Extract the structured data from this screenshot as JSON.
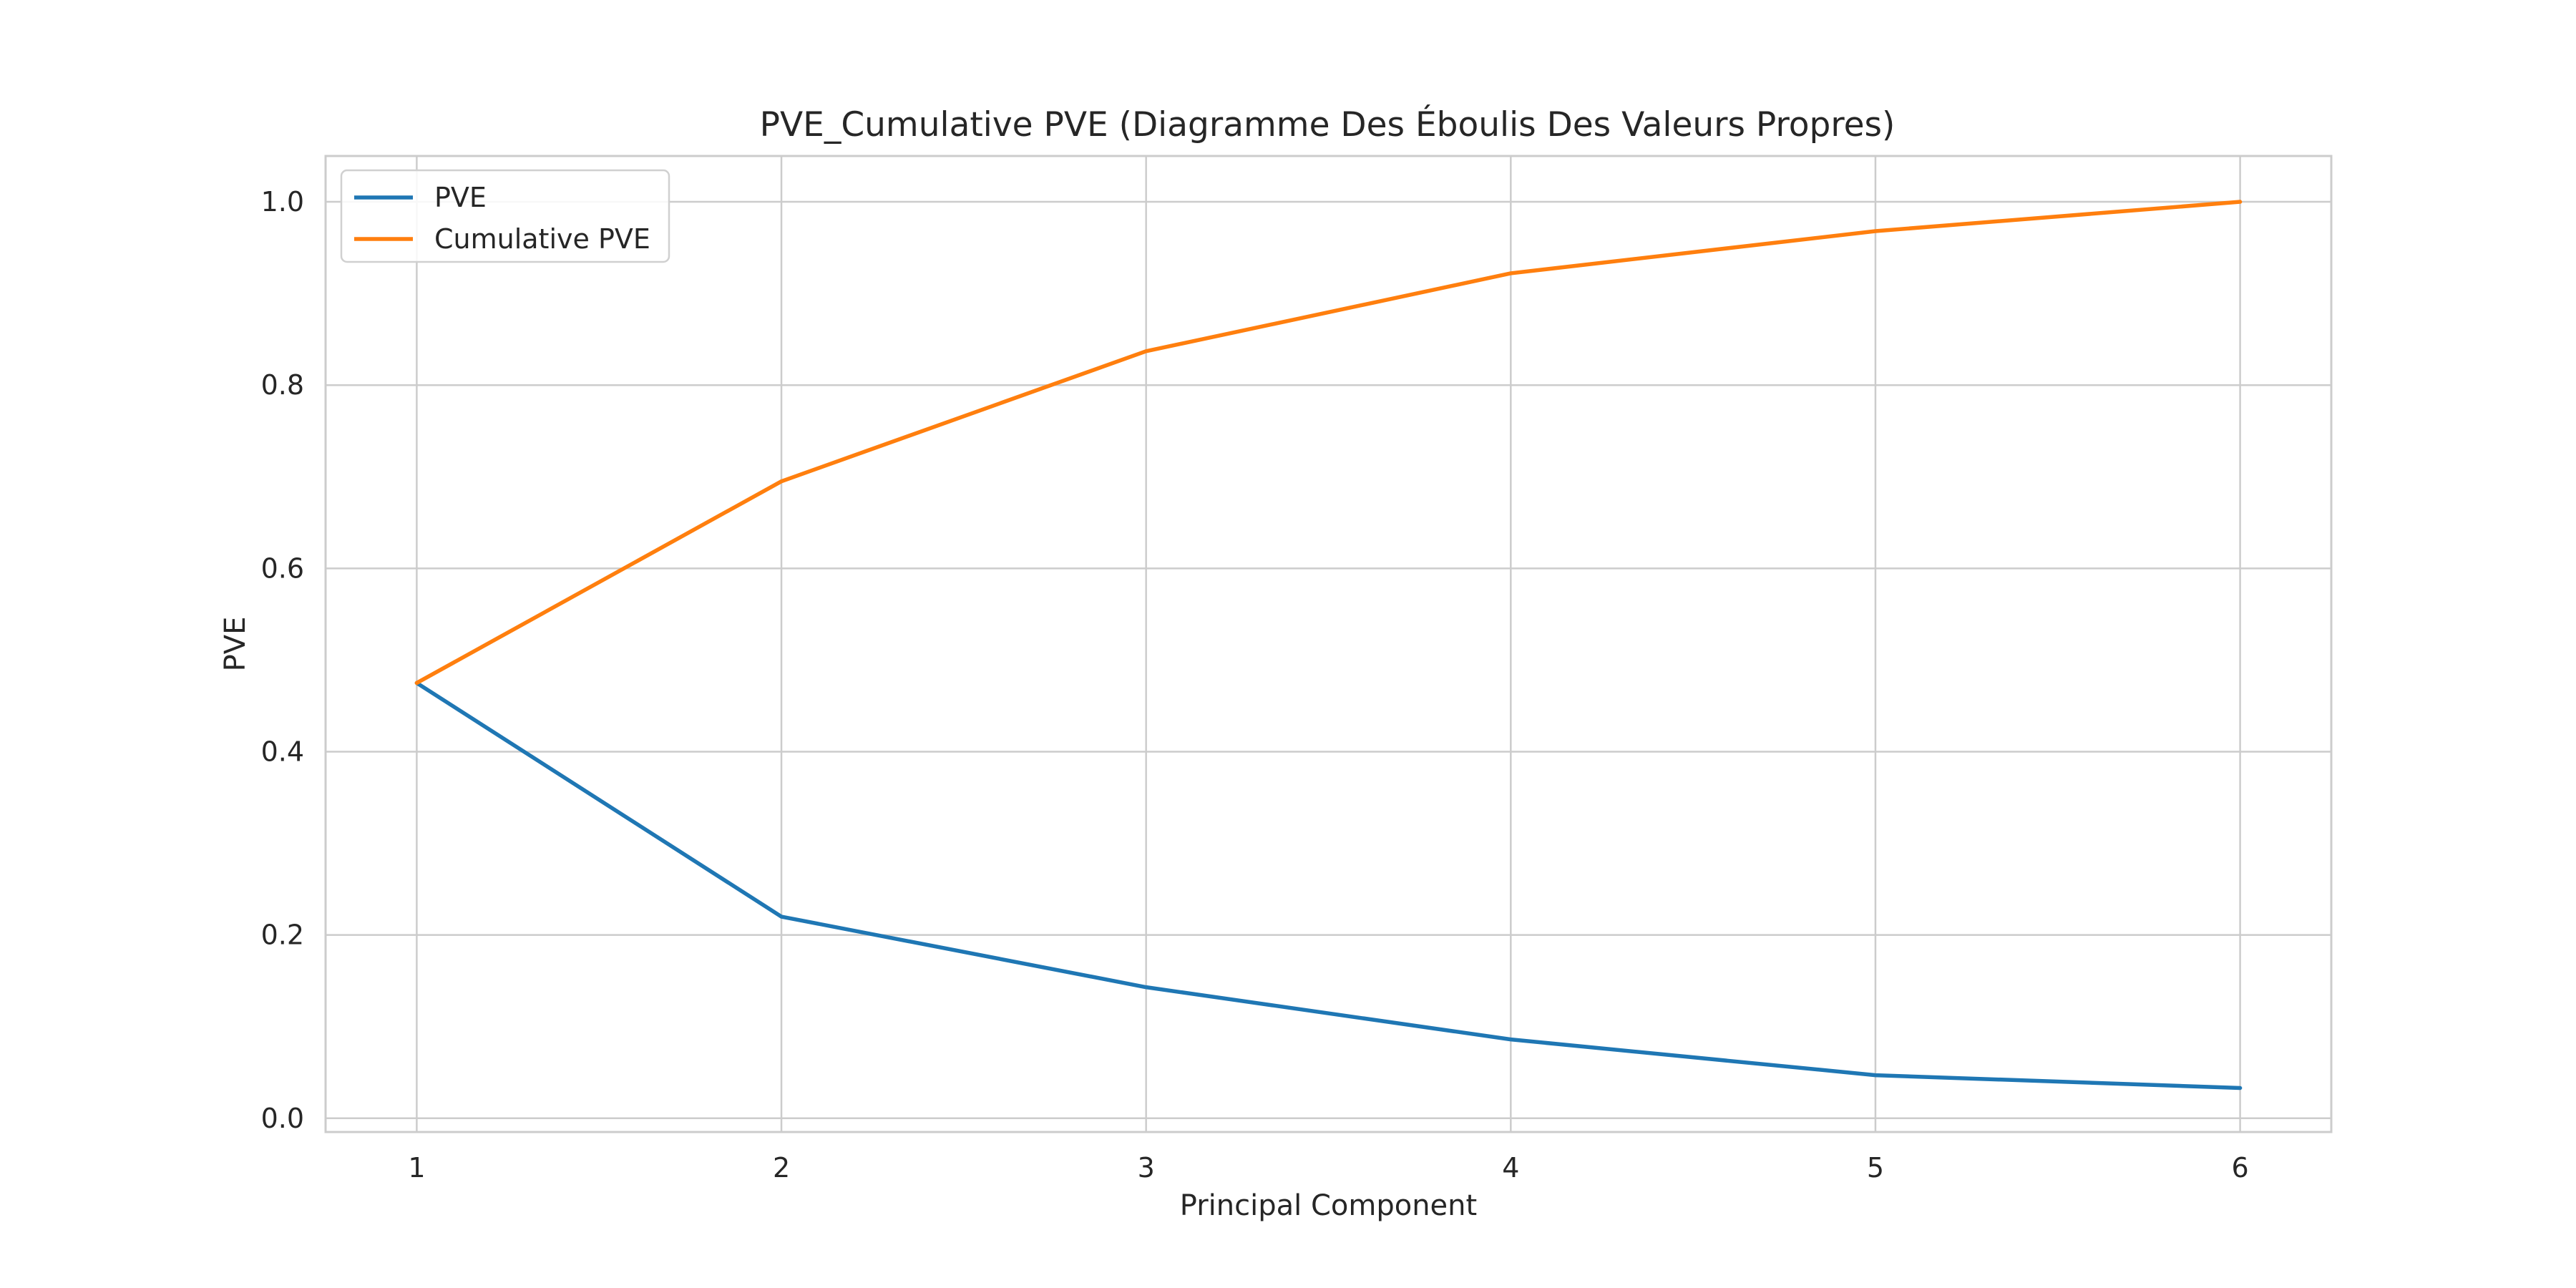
{
  "chart_data": {
    "type": "line",
    "title": "PVE_Cumulative PVE (Diagramme Des Éboulis Des Valeurs Propres)",
    "xlabel": "Principal Component",
    "ylabel": "PVE",
    "x": [
      1,
      2,
      3,
      4,
      5,
      6
    ],
    "x_ticks": [
      "1",
      "2",
      "3",
      "4",
      "5",
      "6"
    ],
    "y_ticks": [
      "0.0",
      "0.2",
      "0.4",
      "0.6",
      "0.8",
      "1.0"
    ],
    "xlim": [
      0.75,
      6.25
    ],
    "ylim": [
      -0.015,
      1.05
    ],
    "grid": true,
    "legend_position": "top-left",
    "series": [
      {
        "name": "PVE",
        "color": "#1f77b4",
        "values": [
          0.475,
          0.22,
          0.143,
          0.086,
          0.047,
          0.033
        ]
      },
      {
        "name": "Cumulative PVE",
        "color": "#ff7f0e",
        "values": [
          0.475,
          0.695,
          0.837,
          0.922,
          0.968,
          1.0
        ]
      }
    ]
  }
}
